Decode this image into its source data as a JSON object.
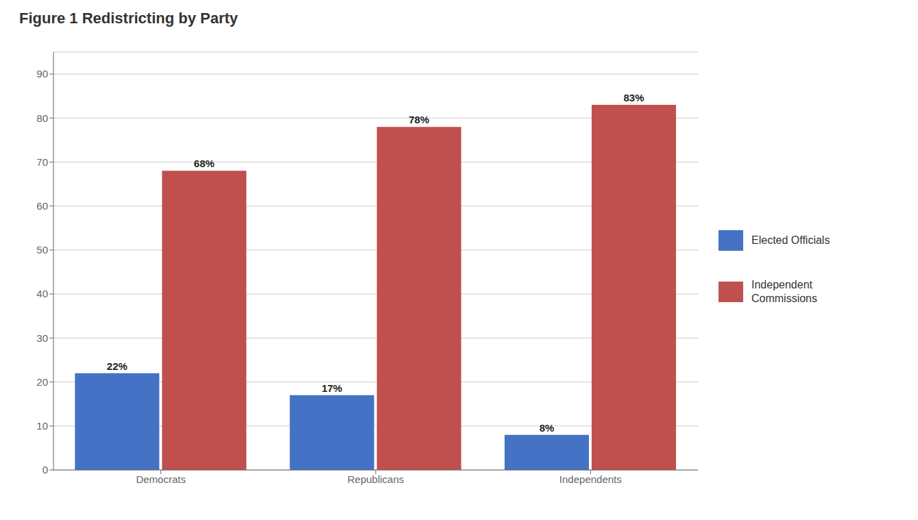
{
  "chart_data": {
    "type": "bar",
    "title": "Figure 1 Redistricting by Party",
    "categories": [
      "Democrats",
      "Republicans",
      "Independents"
    ],
    "series": [
      {
        "name": "Elected Officials",
        "color": "#4472C4",
        "values": [
          22,
          17,
          8
        ],
        "value_labels": [
          "22%",
          "17%",
          "8%"
        ]
      },
      {
        "name": "Independent\nCommissions",
        "color": "#C0504D",
        "values": [
          68,
          78,
          83
        ],
        "value_labels": [
          "68%",
          "78%",
          "83%"
        ]
      }
    ],
    "ylim": [
      0,
      95
    ],
    "yticks": [
      0,
      10,
      20,
      30,
      40,
      50,
      60,
      70,
      80,
      90
    ],
    "grid": true,
    "legend": "right",
    "data_labels": true
  }
}
